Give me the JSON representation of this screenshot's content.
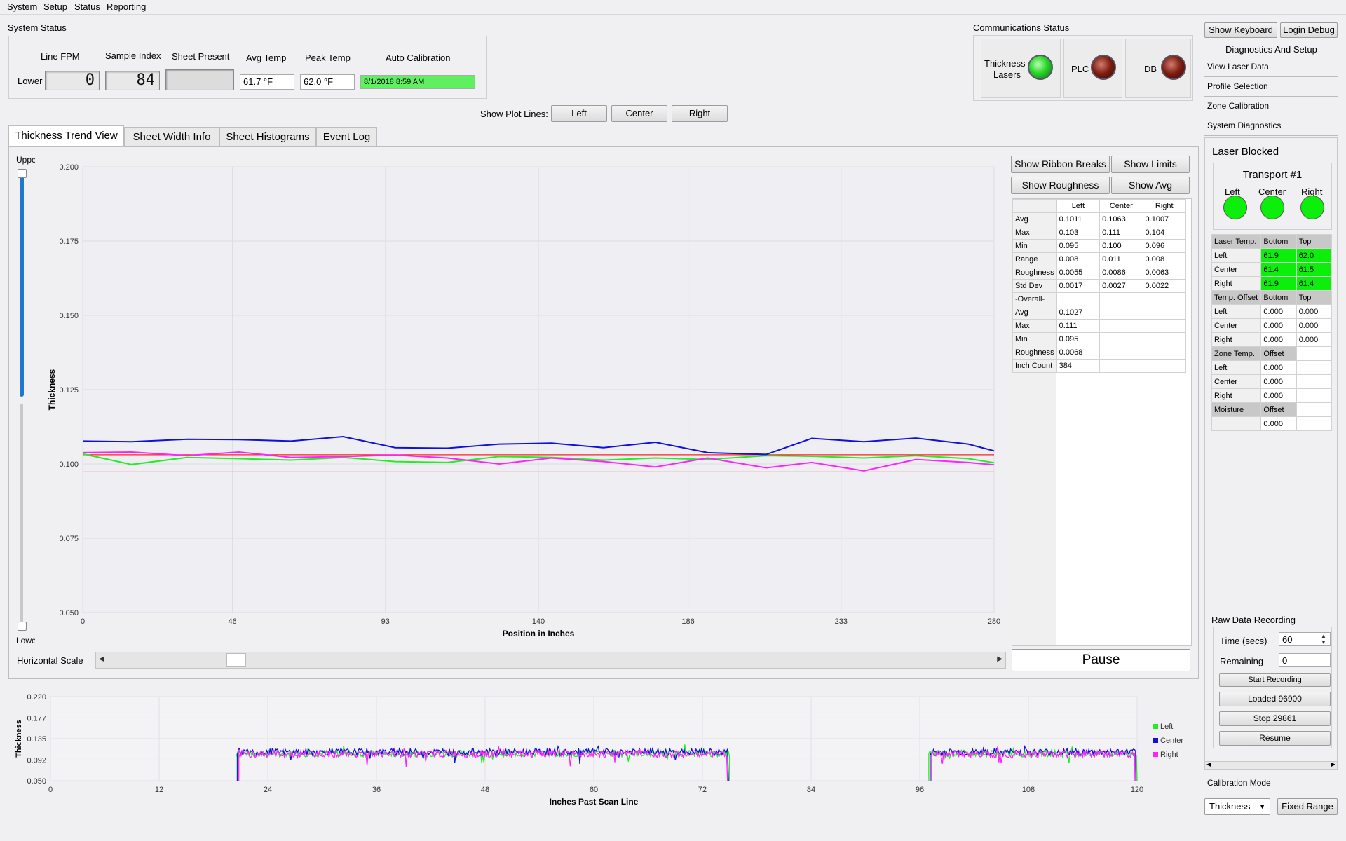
{
  "menu": [
    "System",
    "Setup",
    "Status",
    "Reporting"
  ],
  "system_status": {
    "title": "System Status",
    "row_label": "Lower",
    "headers": [
      "Line FPM",
      "Sample Index",
      "Sheet Present",
      "Avg Temp",
      "Peak Temp",
      "Auto Calibration"
    ],
    "line_fpm": "0",
    "sample_index": "84",
    "avg_temp": "61.7 °F",
    "peak_temp": "62.0 °F",
    "auto_calibration": "8/1/2018 8:59 AM"
  },
  "comms": {
    "title": "Communications Status",
    "items": [
      {
        "label_1": "Thickness",
        "label_2": "Lasers",
        "status": "green"
      },
      {
        "label": "PLC",
        "status": "red"
      },
      {
        "label": "DB",
        "status": "red"
      }
    ]
  },
  "plot_lines": {
    "label": "Show Plot Lines:",
    "buttons": [
      "Left",
      "Center",
      "Right"
    ]
  },
  "tabs": [
    "Thickness Trend View",
    "Sheet Width Info",
    "Sheet Histograms",
    "Event Log"
  ],
  "slider": {
    "upper": "Upper",
    "lower": "Lower"
  },
  "trend_buttons": [
    "Show Ribbon Breaks",
    "Show Limits",
    "Show Roughness",
    "Show Avg"
  ],
  "stats": {
    "headers": [
      "",
      "Left",
      "Center",
      "Right"
    ],
    "rows": [
      [
        "Avg",
        "0.1011",
        "0.1063",
        "0.1007"
      ],
      [
        "Max",
        "0.103",
        "0.111",
        "0.104"
      ],
      [
        "Min",
        "0.095",
        "0.100",
        "0.096"
      ],
      [
        "Range",
        "0.008",
        "0.011",
        "0.008"
      ],
      [
        "Roughness",
        "0.0055",
        "0.0086",
        "0.0063"
      ],
      [
        "Std Dev",
        "0.0017",
        "0.0027",
        "0.0022"
      ],
      [
        "-Overall-",
        "",
        "",
        ""
      ],
      [
        "Avg",
        "0.1027",
        "",
        ""
      ],
      [
        "Max",
        "0.111",
        "",
        ""
      ],
      [
        "Min",
        "0.095",
        "",
        ""
      ],
      [
        "Roughness",
        "0.0068",
        "",
        ""
      ],
      [
        "Inch Count",
        "384",
        "",
        ""
      ]
    ]
  },
  "pause_label": "Pause",
  "horizontal_scale_label": "Horizontal Scale",
  "chart_data": [
    {
      "type": "line",
      "title": "",
      "xlabel": "Position in Inches",
      "ylabel": "Thickness",
      "xlim": [
        0,
        280
      ],
      "ylim": [
        0.05,
        0.2
      ],
      "x_ticks": [
        "0",
        "46",
        "93",
        "140",
        "186",
        "233",
        "280"
      ],
      "y_ticks": [
        "0.050",
        "0.075",
        "0.100",
        "0.125",
        "0.150",
        "0.175",
        "0.200"
      ],
      "grid": true,
      "limit_lines": [
        0.1031,
        0.0973
      ],
      "limit_color": "#ff2020",
      "x": [
        0,
        15,
        32,
        48,
        64,
        80,
        96,
        112,
        128,
        144,
        160,
        176,
        192,
        210,
        224,
        240,
        256,
        272,
        280
      ],
      "series": [
        {
          "name": "Left",
          "color": "#22ee22",
          "values": [
            0.1034,
            0.0998,
            0.1022,
            0.1018,
            0.1013,
            0.1022,
            0.1008,
            0.1005,
            0.1025,
            0.1022,
            0.1013,
            0.102,
            0.1015,
            0.1028,
            0.1026,
            0.102,
            0.1028,
            0.1018,
            0.1004
          ]
        },
        {
          "name": "Center",
          "color": "#1010dd",
          "values": [
            0.1077,
            0.1075,
            0.1083,
            0.1082,
            0.1077,
            0.1092,
            0.1055,
            0.1053,
            0.1067,
            0.107,
            0.1055,
            0.1073,
            0.1038,
            0.1032,
            0.1086,
            0.1075,
            0.1087,
            0.1067,
            0.1044
          ]
        },
        {
          "name": "Right",
          "color": "#ff22ff",
          "values": [
            0.1038,
            0.104,
            0.1028,
            0.104,
            0.1022,
            0.1025,
            0.103,
            0.102,
            0.1,
            0.102,
            0.1008,
            0.099,
            0.102,
            0.0987,
            0.1005,
            0.0977,
            0.1015,
            0.1005,
            0.0997
          ]
        }
      ]
    },
    {
      "type": "line",
      "title": "",
      "xlabel": "Inches Past Scan Line",
      "ylabel": "Thickness",
      "xlim": [
        0,
        120
      ],
      "ylim": [
        0.05,
        0.22
      ],
      "x_ticks": [
        "0",
        "12",
        "24",
        "36",
        "48",
        "60",
        "72",
        "84",
        "96",
        "108",
        "120"
      ],
      "y_ticks": [
        "0.050",
        "0.092",
        "0.135",
        "0.177",
        "0.220"
      ],
      "grid": true,
      "legend": "right",
      "segments": [
        [
          20.5,
          75
        ],
        [
          97,
          120
        ]
      ],
      "series": [
        {
          "name": "Left",
          "color": "#22ee22",
          "values": [
            0.105
          ]
        },
        {
          "name": "Center",
          "color": "#1010dd",
          "values": [
            0.108
          ]
        },
        {
          "name": "Right",
          "color": "#ff22ff",
          "values": [
            0.104
          ]
        }
      ]
    }
  ],
  "side": {
    "show_keyboard": "Show  Keyboard",
    "login_debug": "Login Debug",
    "diag_title": "Diagnostics And Setup",
    "nav": [
      "View Laser Data",
      "Profile Selection",
      "Zone Calibration",
      "System Diagnostics"
    ],
    "laser_blocked": "Laser Blocked",
    "transport": "Transport #1",
    "transport_labels": [
      "Left",
      "Center",
      "Right"
    ],
    "temp_table": [
      [
        "Laser Temp.",
        "Bottom",
        "Top"
      ],
      [
        "Left",
        "61.9",
        "62.0"
      ],
      [
        "Center",
        "61.4",
        "61.5"
      ],
      [
        "Right",
        "61.9",
        "61.4"
      ],
      [
        "Temp. Offset",
        "Bottom",
        "Top"
      ],
      [
        "Left",
        "0.000",
        "0.000"
      ],
      [
        "Center",
        "0.000",
        "0.000"
      ],
      [
        "Right",
        "0.000",
        "0.000"
      ],
      [
        "Zone Temp.",
        "Offset",
        ""
      ],
      [
        "Left",
        "0.000",
        ""
      ],
      [
        "Center",
        "0.000",
        ""
      ],
      [
        "Right",
        "0.000",
        ""
      ],
      [
        "Moisture",
        "Offset",
        ""
      ],
      [
        "",
        "0.000",
        ""
      ]
    ],
    "raw_title": "Raw Data Recording",
    "time_label": "Time (secs)",
    "time_value": "60",
    "remaining_label": "Remaining",
    "remaining_value": "0",
    "buttons": [
      "Start Recording",
      "Loaded 96900",
      "Stop 29861",
      "Resume"
    ],
    "calibration_mode": "Calibration Mode",
    "mode_select": "Thickness",
    "fixed_range": "Fixed Range"
  }
}
